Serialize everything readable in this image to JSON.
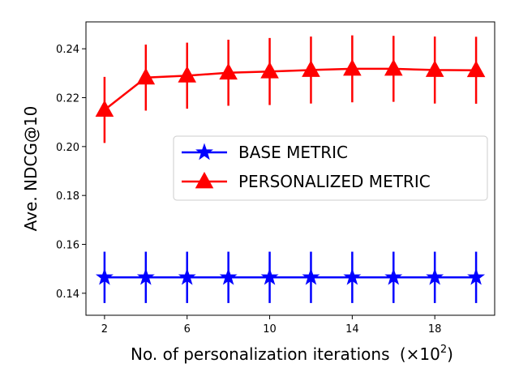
{
  "chart_data": {
    "type": "line",
    "title": "",
    "xlabel": "No. of personalization iterations",
    "xlabel_suffix": "(×10",
    "xlabel_exponent": "2",
    "xlabel_close": ")",
    "ylabel": "Ave. NDCG@10",
    "xlim": [
      1.1,
      20.9
    ],
    "ylim": [
      0.131,
      0.251
    ],
    "xticks": [
      2,
      6,
      10,
      14,
      18
    ],
    "yticks": [
      0.14,
      0.16,
      0.18,
      0.2,
      0.22,
      0.24
    ],
    "ytick_labels": [
      "0.14",
      "0.16",
      "0.18",
      "0.20",
      "0.22",
      "0.24"
    ],
    "legend_position": "center-right",
    "x": [
      2,
      4,
      6,
      8,
      10,
      12,
      14,
      16,
      18,
      20
    ],
    "series": [
      {
        "name": "BASE METRIC",
        "color": "#0000ff",
        "marker": "star",
        "values": [
          0.1465,
          0.1465,
          0.1465,
          0.1465,
          0.1465,
          0.1465,
          0.1465,
          0.1465,
          0.1465,
          0.1465
        ],
        "errors": [
          0.0105,
          0.0105,
          0.0105,
          0.0105,
          0.0105,
          0.0105,
          0.0105,
          0.0105,
          0.0105,
          0.0105
        ]
      },
      {
        "name": "PERSONALIZED METRIC",
        "color": "#ff0000",
        "marker": "triangle",
        "values": [
          0.215,
          0.2282,
          0.229,
          0.2302,
          0.2307,
          0.2313,
          0.2318,
          0.2318,
          0.2313,
          0.2312
        ],
        "errors": [
          0.0135,
          0.0135,
          0.0135,
          0.0135,
          0.0137,
          0.0137,
          0.0137,
          0.0135,
          0.0137,
          0.0137
        ]
      }
    ]
  }
}
